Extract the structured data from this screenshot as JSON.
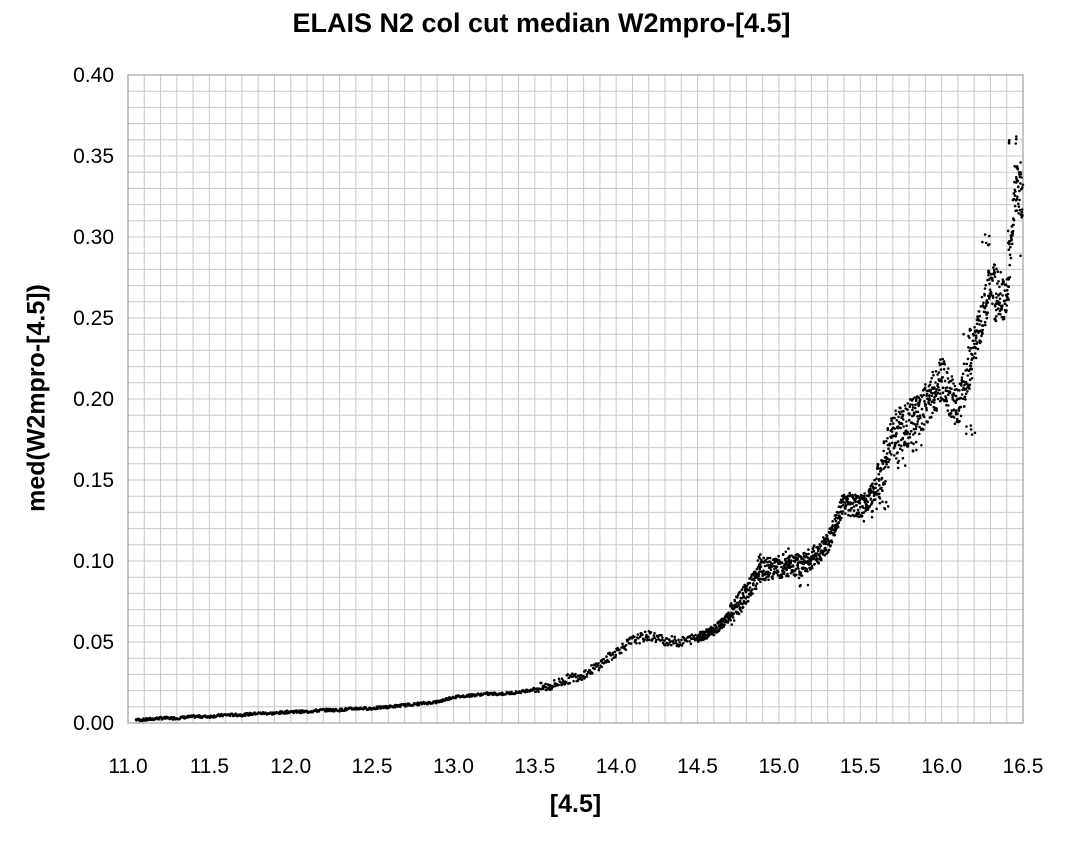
{
  "chart_data": {
    "type": "scatter",
    "title": "ELAIS N2 col cut median W2mpro-[4.5]",
    "xlabel": "[4.5]",
    "ylabel": "med(W2mpro-[4.5])",
    "xlim": [
      11.0,
      16.5
    ],
    "ylim": [
      0.0,
      0.4
    ],
    "x_ticks": [
      "11.0",
      "11.5",
      "12.0",
      "12.5",
      "13.0",
      "13.5",
      "14.0",
      "14.5",
      "15.0",
      "15.5",
      "16.0",
      "16.5"
    ],
    "y_ticks": [
      "0.00",
      "0.05",
      "0.10",
      "0.15",
      "0.20",
      "0.25",
      "0.30",
      "0.35",
      "0.40"
    ],
    "grid": true,
    "marker_color": "#000000",
    "grid_color": "#c8c8c8",
    "series": [
      {
        "points": [
          [
            11.05,
            0.002
          ],
          [
            11.1,
            0.002
          ],
          [
            11.2,
            0.003
          ],
          [
            11.3,
            0.003
          ],
          [
            11.4,
            0.004
          ],
          [
            11.5,
            0.004
          ],
          [
            11.6,
            0.005
          ],
          [
            11.7,
            0.005
          ],
          [
            11.8,
            0.006
          ],
          [
            11.9,
            0.006
          ],
          [
            12.0,
            0.007
          ],
          [
            12.1,
            0.007
          ],
          [
            12.2,
            0.008
          ],
          [
            12.3,
            0.008
          ],
          [
            12.4,
            0.009
          ],
          [
            12.5,
            0.009
          ],
          [
            12.6,
            0.01
          ],
          [
            12.7,
            0.011
          ],
          [
            12.8,
            0.012
          ],
          [
            12.9,
            0.013
          ],
          [
            13.0,
            0.016
          ],
          [
            13.1,
            0.017
          ],
          [
            13.2,
            0.018
          ],
          [
            13.3,
            0.018
          ],
          [
            13.4,
            0.019
          ],
          [
            13.5,
            0.021
          ],
          [
            13.6,
            0.023
          ],
          [
            13.7,
            0.027
          ],
          [
            13.8,
            0.03
          ],
          [
            13.9,
            0.036
          ],
          [
            14.0,
            0.044
          ],
          [
            14.1,
            0.051
          ],
          [
            14.2,
            0.054
          ],
          [
            14.3,
            0.051
          ],
          [
            14.4,
            0.05
          ],
          [
            14.5,
            0.053
          ],
          [
            14.6,
            0.057
          ],
          [
            14.7,
            0.066
          ],
          [
            14.8,
            0.08
          ],
          [
            14.9,
            0.095
          ],
          [
            15.0,
            0.096
          ],
          [
            15.1,
            0.097
          ],
          [
            15.2,
            0.101
          ],
          [
            15.3,
            0.111
          ],
          [
            15.4,
            0.136
          ],
          [
            15.5,
            0.133
          ],
          [
            15.6,
            0.145
          ],
          [
            15.7,
            0.178
          ],
          [
            15.8,
            0.185
          ],
          [
            15.9,
            0.195
          ],
          [
            16.0,
            0.212
          ],
          [
            16.1,
            0.195
          ],
          [
            16.2,
            0.23
          ],
          [
            16.3,
            0.272
          ],
          [
            16.4,
            0.26
          ],
          [
            16.45,
            0.33
          ],
          [
            16.5,
            0.325
          ]
        ],
        "scatter": [
          [
            14.9,
            0.103
          ],
          [
            15.05,
            0.104
          ],
          [
            15.15,
            0.088
          ],
          [
            15.55,
            0.128
          ],
          [
            15.65,
            0.135
          ],
          [
            15.75,
            0.16
          ],
          [
            15.85,
            0.17
          ],
          [
            15.95,
            0.205
          ],
          [
            16.15,
            0.24
          ],
          [
            16.18,
            0.18
          ],
          [
            16.28,
            0.298
          ],
          [
            16.35,
            0.25
          ],
          [
            16.42,
            0.3
          ],
          [
            16.44,
            0.359
          ],
          [
            16.48,
            0.345
          ],
          [
            16.5,
            0.29
          ]
        ]
      }
    ]
  }
}
